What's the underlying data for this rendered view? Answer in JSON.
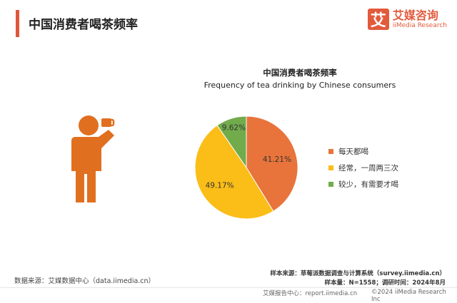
{
  "header": {
    "title": "中国消费者喝茶频率",
    "brand_mark": "艾",
    "brand_cn": "艾媒咨询",
    "brand_en": "iiMedia Research"
  },
  "chart_data": {
    "type": "pie",
    "title": "中国消费者喝茶频率",
    "subtitle": "Frequency of tea drinking by Chinese consumers",
    "categories": [
      "每天都喝",
      "经常，一周两三次",
      "较少，有需要才喝"
    ],
    "values": [
      41.21,
      49.17,
      9.62
    ],
    "labels": [
      "41.21%",
      "49.17%",
      "9.62%"
    ],
    "colors": [
      "#e8743b",
      "#fbbd17",
      "#72ab4c"
    ],
    "legend_position": "right"
  },
  "footer": {
    "source": "数据来源：艾媒数据中心（data.iimedia.cn）",
    "sample_source": "样本来源：草莓派数据调查与计算系统（survey.iimedia.cn）",
    "sample_info": "样本量：N=1558；调研时间：2024年8月",
    "report_center": "艾媒报告中心：report.iimedia.cn",
    "copyright": "©2024  iiMedia Research  Inc"
  }
}
